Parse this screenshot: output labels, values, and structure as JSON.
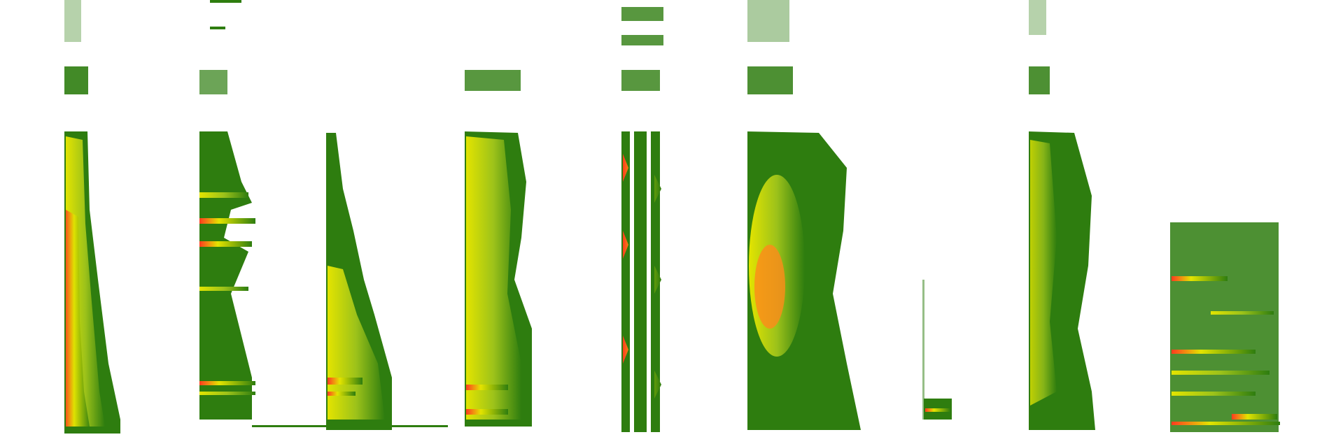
{
  "figure": {
    "panel_count": 10,
    "palette": {
      "background": "#ffffff",
      "low": "#2e7d0f",
      "mid": "#e3e400",
      "high": "#ff3b1f"
    },
    "panels": [
      {
        "id": "panel-1"
      },
      {
        "id": "panel-2"
      },
      {
        "id": "panel-3"
      },
      {
        "id": "panel-4"
      },
      {
        "id": "panel-5"
      },
      {
        "id": "panel-6"
      },
      {
        "id": "panel-7"
      },
      {
        "id": "panel-8"
      },
      {
        "id": "panel-9"
      },
      {
        "id": "panel-10"
      }
    ]
  }
}
